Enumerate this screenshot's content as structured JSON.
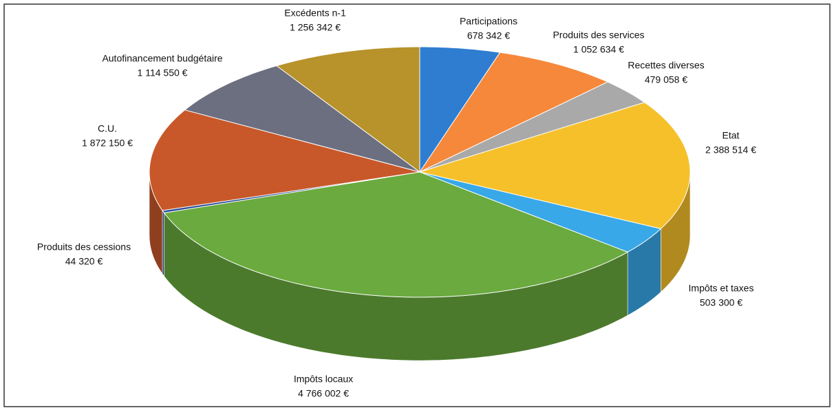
{
  "chart_data": {
    "type": "pie",
    "categories": [
      "Participations",
      "Produits des services",
      "Recettes diverses",
      "Etat",
      "Impôts et taxes",
      "Impôts locaux",
      "Produits des cessions",
      "C.U.",
      "Autofinancement budgétaire",
      "Excédents n-1"
    ],
    "values": [
      678342,
      1052634,
      479058,
      2388514,
      503300,
      4766002,
      44320,
      1872150,
      1114550,
      1256342
    ],
    "value_labels": [
      "678 342 €",
      "1 052 634 €",
      "479 058 €",
      "2 388 514 €",
      "503 300 €",
      "4 766 002 €",
      "44 320 €",
      "1 872 150 €",
      "1 114 550 €",
      "1 256 342 €"
    ],
    "colors": [
      "#2e7dd1",
      "#f5883a",
      "#a9a9a9",
      "#f5c02a",
      "#38a8e8",
      "#6aaa3e",
      "#2c4f9a",
      "#c8582a",
      "#6b6f80",
      "#b8922a"
    ]
  }
}
